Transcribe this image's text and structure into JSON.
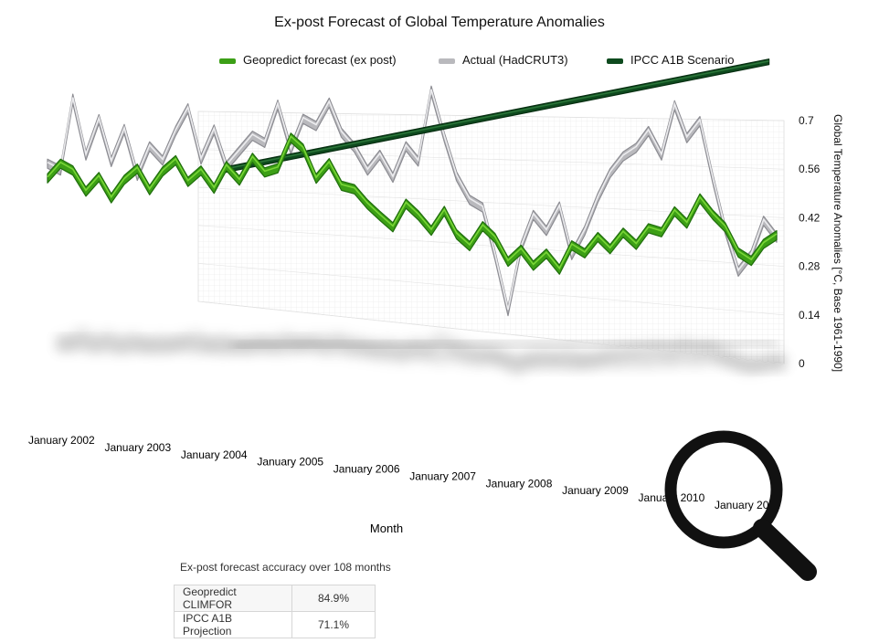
{
  "chart_data": {
    "type": "line",
    "title": "Ex-post Forecast of Global Temperature Anomalies",
    "xlabel": "Month",
    "ylabel": "Global Temperature Anomalies [°C, Base 1961-1990]",
    "ylim": [
      0,
      0.7
    ],
    "yticks": [
      "0",
      "0.14",
      "0.28",
      "0.42",
      "0.56",
      "0.7"
    ],
    "x_tick_labels": [
      "January 2002",
      "January 2003",
      "January 2004",
      "January 2005",
      "January 2006",
      "January 2007",
      "January 2008",
      "January 2009",
      "January 2010",
      "January 2011"
    ],
    "grid": true,
    "legend_position": "top",
    "series": [
      {
        "name": "Geopredict forecast (ex post)",
        "color": "#3c9f16",
        "points": [
          [
            2002.0,
            0.46
          ],
          [
            2002.17,
            0.5
          ],
          [
            2002.33,
            0.48
          ],
          [
            2002.5,
            0.42
          ],
          [
            2002.67,
            0.46
          ],
          [
            2002.83,
            0.4
          ],
          [
            2003.0,
            0.45
          ],
          [
            2003.17,
            0.48
          ],
          [
            2003.33,
            0.42
          ],
          [
            2003.5,
            0.47
          ],
          [
            2003.67,
            0.5
          ],
          [
            2003.83,
            0.44
          ],
          [
            2004.0,
            0.47
          ],
          [
            2004.17,
            0.42
          ],
          [
            2004.33,
            0.48
          ],
          [
            2004.5,
            0.44
          ],
          [
            2004.67,
            0.5
          ],
          [
            2004.83,
            0.46
          ],
          [
            2005.0,
            0.47
          ],
          [
            2005.17,
            0.55
          ],
          [
            2005.33,
            0.52
          ],
          [
            2005.5,
            0.44
          ],
          [
            2005.67,
            0.48
          ],
          [
            2005.83,
            0.42
          ],
          [
            2006.0,
            0.41
          ],
          [
            2006.17,
            0.37
          ],
          [
            2006.33,
            0.34
          ],
          [
            2006.5,
            0.31
          ],
          [
            2006.67,
            0.37
          ],
          [
            2006.83,
            0.34
          ],
          [
            2007.0,
            0.3
          ],
          [
            2007.17,
            0.35
          ],
          [
            2007.33,
            0.29
          ],
          [
            2007.5,
            0.26
          ],
          [
            2007.67,
            0.31
          ],
          [
            2007.83,
            0.28
          ],
          [
            2008.0,
            0.22
          ],
          [
            2008.17,
            0.25
          ],
          [
            2008.33,
            0.21
          ],
          [
            2008.5,
            0.24
          ],
          [
            2008.67,
            0.2
          ],
          [
            2008.83,
            0.26
          ],
          [
            2009.0,
            0.24
          ],
          [
            2009.17,
            0.28
          ],
          [
            2009.33,
            0.25
          ],
          [
            2009.5,
            0.29
          ],
          [
            2009.67,
            0.26
          ],
          [
            2009.83,
            0.3
          ],
          [
            2010.0,
            0.29
          ],
          [
            2010.17,
            0.34
          ],
          [
            2010.33,
            0.31
          ],
          [
            2010.5,
            0.37
          ],
          [
            2010.67,
            0.33
          ],
          [
            2010.83,
            0.3
          ],
          [
            2011.0,
            0.24
          ],
          [
            2011.17,
            0.22
          ],
          [
            2011.33,
            0.26
          ],
          [
            2011.5,
            0.28
          ]
        ]
      },
      {
        "name": "Actual (HadCRUT3)",
        "color": "#b9b9bd",
        "points": [
          [
            2002.0,
            0.46
          ],
          [
            2002.17,
            0.44
          ],
          [
            2002.33,
            0.64
          ],
          [
            2002.5,
            0.48
          ],
          [
            2002.67,
            0.58
          ],
          [
            2002.83,
            0.46
          ],
          [
            2003.0,
            0.55
          ],
          [
            2003.17,
            0.42
          ],
          [
            2003.33,
            0.5
          ],
          [
            2003.5,
            0.46
          ],
          [
            2003.67,
            0.54
          ],
          [
            2003.83,
            0.6
          ],
          [
            2004.0,
            0.46
          ],
          [
            2004.17,
            0.54
          ],
          [
            2004.33,
            0.44
          ],
          [
            2004.5,
            0.48
          ],
          [
            2004.67,
            0.52
          ],
          [
            2004.83,
            0.5
          ],
          [
            2005.0,
            0.6
          ],
          [
            2005.17,
            0.48
          ],
          [
            2005.33,
            0.56
          ],
          [
            2005.5,
            0.54
          ],
          [
            2005.67,
            0.6
          ],
          [
            2005.83,
            0.52
          ],
          [
            2006.0,
            0.48
          ],
          [
            2006.17,
            0.42
          ],
          [
            2006.33,
            0.46
          ],
          [
            2006.5,
            0.4
          ],
          [
            2006.67,
            0.48
          ],
          [
            2006.83,
            0.44
          ],
          [
            2007.0,
            0.62
          ],
          [
            2007.17,
            0.5
          ],
          [
            2007.33,
            0.4
          ],
          [
            2007.5,
            0.34
          ],
          [
            2007.67,
            0.32
          ],
          [
            2007.83,
            0.2
          ],
          [
            2008.0,
            0.06
          ],
          [
            2008.17,
            0.22
          ],
          [
            2008.33,
            0.3
          ],
          [
            2008.5,
            0.26
          ],
          [
            2008.67,
            0.32
          ],
          [
            2008.83,
            0.2
          ],
          [
            2009.0,
            0.26
          ],
          [
            2009.17,
            0.34
          ],
          [
            2009.33,
            0.4
          ],
          [
            2009.5,
            0.44
          ],
          [
            2009.67,
            0.46
          ],
          [
            2009.83,
            0.5
          ],
          [
            2010.0,
            0.44
          ],
          [
            2010.17,
            0.56
          ],
          [
            2010.33,
            0.48
          ],
          [
            2010.5,
            0.52
          ],
          [
            2010.67,
            0.38
          ],
          [
            2010.83,
            0.26
          ],
          [
            2011.0,
            0.16
          ],
          [
            2011.17,
            0.2
          ],
          [
            2011.33,
            0.28
          ],
          [
            2011.5,
            0.24
          ]
        ]
      },
      {
        "name": "IPCC A1B Scenario",
        "color": "#0e4a1e",
        "points": [
          [
            2004.3,
            0.46
          ],
          [
            2011.4,
            0.68
          ]
        ]
      }
    ],
    "accuracy": {
      "caption": "Ex-post forecast accuracy over 108 months",
      "rows": [
        {
          "model": "Geopredict CLIMFOR",
          "value": "84.9%"
        },
        {
          "model": "IPCC A1B Projection",
          "value": "71.1%"
        }
      ]
    }
  },
  "icons": {
    "magnifier": "magnifier-icon"
  }
}
